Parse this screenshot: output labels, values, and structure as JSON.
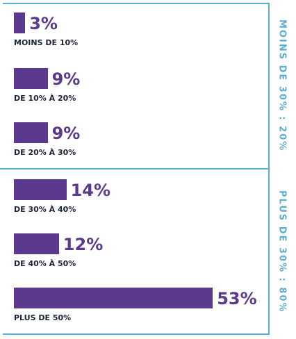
{
  "chart_data": {
    "type": "bar",
    "orientation": "horizontal",
    "groups": [
      {
        "label": "MOINS DE 30% : 20%",
        "items": [
          {
            "category": "MOINS DE 10%",
            "value": 3,
            "label": "3%"
          },
          {
            "category": "DE 10% À 20%",
            "value": 9,
            "label": "9%"
          },
          {
            "category": "DE 20% À 30%",
            "value": 9,
            "label": "9%"
          }
        ]
      },
      {
        "label": "PLUS DE 30% : 80%",
        "items": [
          {
            "category": "DE 30% À 40%",
            "value": 14,
            "label": "14%"
          },
          {
            "category": "DE 40% À 50%",
            "value": 12,
            "label": "12%"
          },
          {
            "category": "PLUS DE 50%",
            "value": 53,
            "label": "53%"
          }
        ]
      }
    ],
    "colors": {
      "bar": "#5b3a8e",
      "border": "#5aaed3",
      "text": "#1b2336"
    }
  }
}
